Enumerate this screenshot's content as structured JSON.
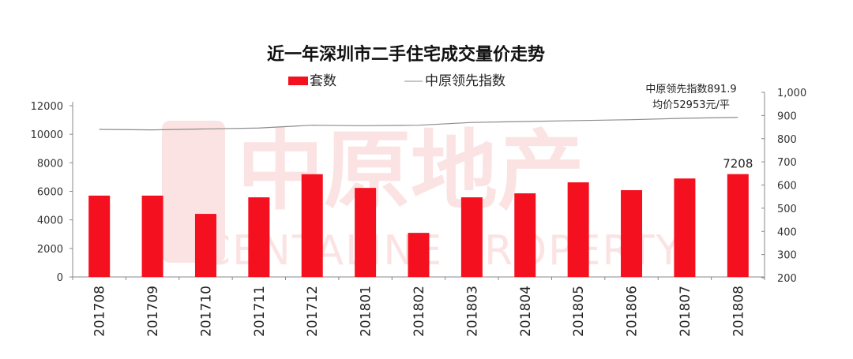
{
  "chart_data": {
    "type": "bar",
    "title": "近一年深圳市二手住宅成交量价走势",
    "categories": [
      "201708",
      "201709",
      "201710",
      "201711",
      "201712",
      "201801",
      "201802",
      "201803",
      "201804",
      "201805",
      "201806",
      "201807",
      "201808"
    ],
    "series": [
      {
        "name": "套数",
        "type": "bar",
        "axis": "left",
        "color": "#f5101f",
        "values": [
          5700,
          5700,
          4420,
          5580,
          7200,
          6240,
          3090,
          5580,
          5860,
          6630,
          6080,
          6900,
          7208
        ]
      },
      {
        "name": "中原领先指数",
        "type": "line",
        "axis": "right",
        "color": "#8c8c8c",
        "values": [
          840,
          838,
          842,
          846,
          858,
          856,
          858,
          870,
          874,
          878,
          882,
          888,
          891.9
        ]
      }
    ],
    "left_axis": {
      "ylim": [
        0,
        12000
      ],
      "ticks": [
        "0",
        "2000",
        "4000",
        "6000",
        "8000",
        "10000",
        "12000"
      ]
    },
    "right_axis": {
      "ylim": [
        200,
        1000
      ],
      "ticks": [
        "200",
        "300",
        "400",
        "500",
        "600",
        "700",
        "800",
        "900",
        "1,000"
      ]
    },
    "data_label": "7208",
    "annotation": [
      "中原领先指数891.9",
      "均价52953元/平"
    ],
    "legend_placement": "top-center",
    "grid": false
  },
  "watermark": {
    "logo_text": "中原地产",
    "sub_text": "CENTALINE PROPERTY",
    "color": "#fbe3e3"
  }
}
